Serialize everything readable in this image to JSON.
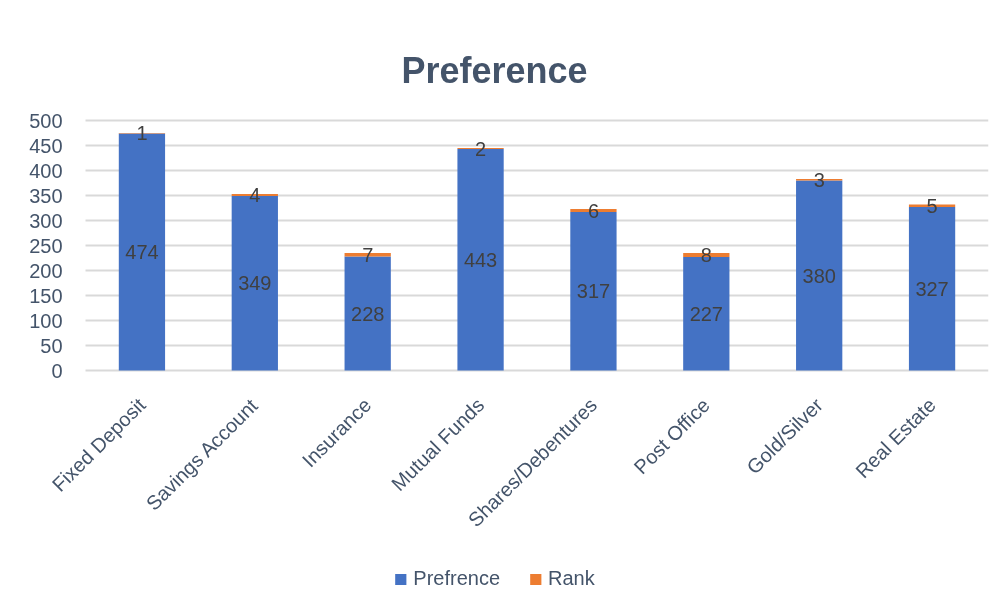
{
  "chart_data": {
    "type": "bar",
    "title": "Preference",
    "categories": [
      "Fixed Deposit",
      "Savings Account",
      "Insurance",
      "Mutual Funds",
      "Shares/Debentures",
      "Post Office",
      "Gold/Silver",
      "Real Estate"
    ],
    "series": [
      {
        "name": "Prefrence",
        "color": "#4472c4",
        "values": [
          474,
          349,
          228,
          443,
          317,
          227,
          380,
          327
        ]
      },
      {
        "name": "Rank",
        "color": "#ed7d31",
        "values": [
          1,
          4,
          7,
          2,
          6,
          8,
          3,
          5
        ]
      }
    ],
    "stacked": true,
    "ylim": [
      0,
      500
    ],
    "yticks": [
      0,
      50,
      100,
      150,
      200,
      250,
      300,
      350,
      400,
      450,
      500
    ],
    "grid": "y",
    "legend": "bottom",
    "data_labels": true
  }
}
